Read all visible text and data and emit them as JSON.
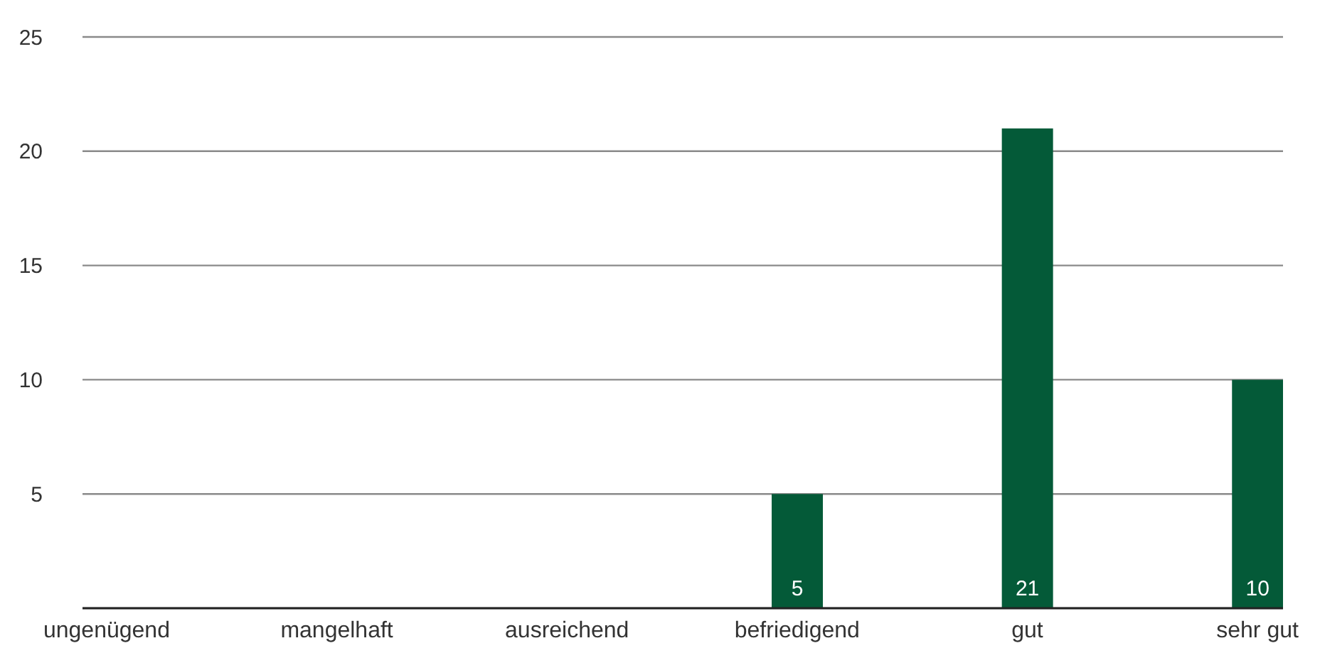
{
  "chart_data": {
    "type": "bar",
    "categories": [
      "ungenügend",
      "mangelhaft",
      "ausreichend",
      "befriedigend",
      "gut",
      "sehr gut"
    ],
    "values": [
      0,
      0,
      0,
      5,
      21,
      10
    ],
    "color": "#045a38",
    "value_labels": [
      null,
      null,
      null,
      "5",
      "21",
      "10"
    ],
    "ylim": [
      0,
      25
    ],
    "yticks": [
      5,
      10,
      15,
      20,
      25
    ],
    "grid": "y"
  }
}
